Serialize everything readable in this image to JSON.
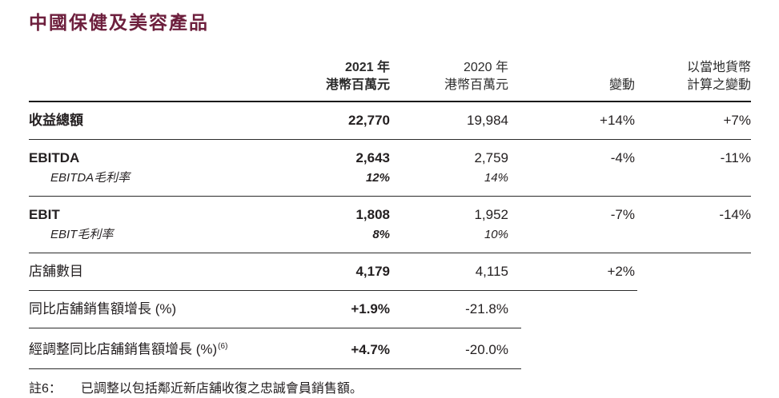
{
  "accent_color": "#6D1F3D",
  "title": "中國保健及美容產品",
  "table": {
    "headers": {
      "y2021": [
        "2021 年",
        "港幣百萬元"
      ],
      "y2020": [
        "2020 年",
        "港幣百萬元"
      ],
      "change": "變動",
      "local": [
        "以當地貨幣",
        "計算之變動"
      ]
    },
    "rows": [
      {
        "label": "收益總額",
        "v2021": "22,770",
        "v2020": "19,984",
        "change": "+14%",
        "local": "+7%"
      },
      {
        "label": "EBITDA",
        "v2021": "2,643",
        "v2020": "2,759",
        "change": "-4%",
        "local": "-11%",
        "sub_label": "EBITDA毛利率",
        "sub_v2021": "12%",
        "sub_v2020": "14%"
      },
      {
        "label": "EBIT",
        "v2021": "1,808",
        "v2020": "1,952",
        "change": "-7%",
        "local": "-14%",
        "sub_label": "EBIT毛利率",
        "sub_v2021": "8%",
        "sub_v2020": "10%"
      },
      {
        "label": "店舖數目",
        "v2021": "4,179",
        "v2020": "4,115",
        "change": "+2%"
      },
      {
        "label": "同比店舖銷售額增長 (%)",
        "v2021": "+1.9%",
        "v2020": "-21.8%"
      },
      {
        "label": "經調整同比店舖銷售額增長 (%)",
        "label_sup": "(6)",
        "v2021": "+4.7%",
        "v2020": "-20.0%"
      }
    ]
  },
  "footnote": {
    "ref": "註6：",
    "text": "已調整以包括鄰近新店舖收復之忠誠會員銷售額。"
  }
}
